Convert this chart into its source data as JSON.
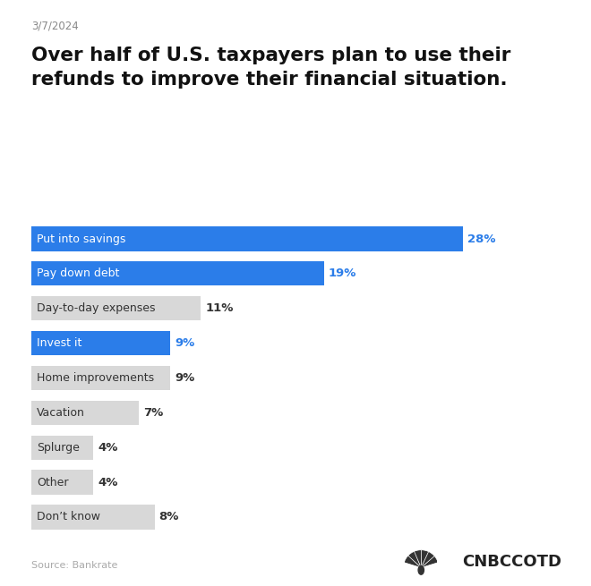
{
  "date": "3/7/2024",
  "title_line1": "Over half of U.S. taxpayers plan to use their",
  "title_line2": "refunds to improve their financial situation.",
  "categories": [
    "Put into savings",
    "Pay down debt",
    "Day-to-day expenses",
    "Invest it",
    "Home improvements",
    "Vacation",
    "Splurge",
    "Other",
    "Don’t know"
  ],
  "values": [
    28,
    19,
    11,
    9,
    9,
    7,
    4,
    4,
    8
  ],
  "bar_colors": [
    "#2b7de9",
    "#2b7de9",
    "#d8d8d8",
    "#2b7de9",
    "#d8d8d8",
    "#d8d8d8",
    "#d8d8d8",
    "#d8d8d8",
    "#d8d8d8"
  ],
  "label_colors_inside": [
    "#ffffff",
    "#ffffff",
    "#333333",
    "#ffffff",
    "#333333",
    "#333333",
    "#333333",
    "#333333",
    "#333333"
  ],
  "value_colors": [
    "#2b7de9",
    "#2b7de9",
    "#333333",
    "#2b7de9",
    "#333333",
    "#333333",
    "#333333",
    "#333333",
    "#333333"
  ],
  "source": "Source: Bankrate",
  "background_color": "#ffffff",
  "max_value": 30,
  "bar_height": 0.7
}
